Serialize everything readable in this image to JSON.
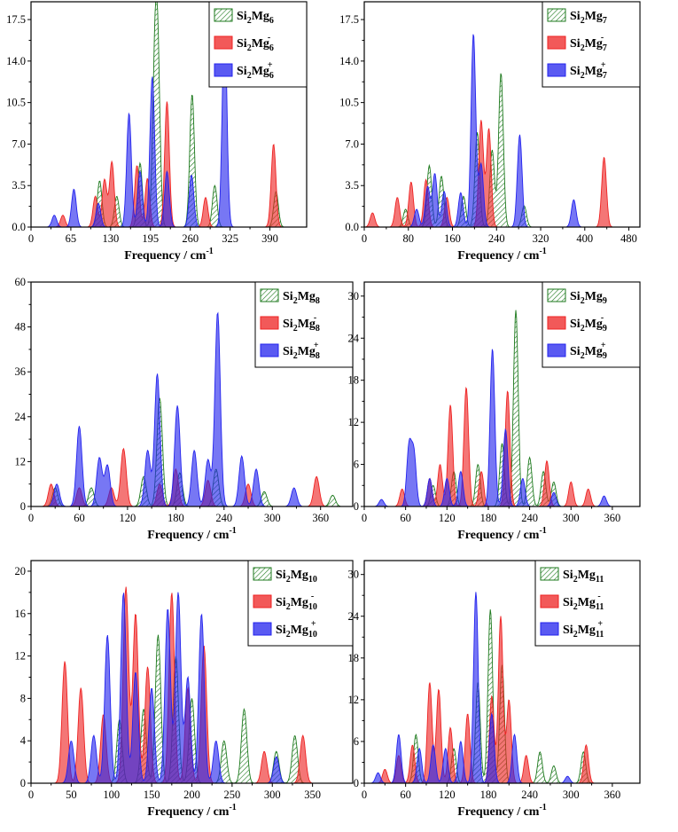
{
  "figure_title": "",
  "colors": {
    "neutral": "#1e7a1e",
    "anion": "#ee2222",
    "cation": "#2323ee"
  },
  "chart_data": [
    {
      "type": "area",
      "id": "si2mg6",
      "xlabel": "Frequency / cm",
      "xlabel_sup": "-1",
      "xlim": [
        0,
        450
      ],
      "ylim": [
        0,
        19
      ],
      "xticks": [
        0,
        65,
        130,
        195,
        260,
        325,
        390
      ],
      "yticks": [
        0.0,
        3.5,
        7.0,
        10.5,
        14.0,
        17.5
      ],
      "legend": [
        {
          "base": "Si",
          "n1": "2",
          "mg": "Mg",
          "n2": "6",
          "charge": "",
          "style": "hatch"
        },
        {
          "base": "Si",
          "n1": "2",
          "mg": "Mg",
          "n2": "6",
          "charge": "-",
          "style": "anion"
        },
        {
          "base": "Si",
          "n1": "2",
          "mg": "Mg",
          "n2": "6",
          "charge": "+",
          "style": "cation"
        }
      ],
      "series": [
        {
          "name": "Si2Mg6",
          "peaks": [
            [
              112,
              3.9
            ],
            [
              140,
              2.6
            ],
            [
              178,
              5.4
            ],
            [
              202,
              11.8
            ],
            [
              207,
              12.8
            ],
            [
              263,
              11.2
            ],
            [
              300,
              3.5
            ],
            [
              400,
              3.0
            ]
          ]
        },
        {
          "name": "Si2Mg6-",
          "peaks": [
            [
              52,
              1.0
            ],
            [
              105,
              2.6
            ],
            [
              120,
              4.0
            ],
            [
              132,
              5.5
            ],
            [
              173,
              5.2
            ],
            [
              190,
              4.1
            ],
            [
              222,
              10.6
            ],
            [
              285,
              2.5
            ],
            [
              396,
              7.0
            ]
          ]
        },
        {
          "name": "Si2Mg6+",
          "peaks": [
            [
              38,
              1.0
            ],
            [
              70,
              3.2
            ],
            [
              110,
              2.0
            ],
            [
              160,
              9.6
            ],
            [
              178,
              4.7
            ],
            [
              198,
              12.7
            ],
            [
              222,
              4.7
            ],
            [
              262,
              4.4
            ],
            [
              316,
              17.4
            ]
          ]
        }
      ]
    },
    {
      "type": "area",
      "id": "si2mg7",
      "xlabel": "Frequency / cm",
      "xlabel_sup": "-1",
      "xlim": [
        0,
        500
      ],
      "ylim": [
        0,
        19
      ],
      "xticks": [
        0,
        80,
        160,
        240,
        320,
        400,
        480
      ],
      "yticks": [
        0.0,
        3.5,
        7.0,
        10.5,
        14.0,
        17.5
      ],
      "legend": [
        {
          "base": "Si",
          "n1": "2",
          "mg": "Mg",
          "n2": "7",
          "charge": "",
          "style": "hatch"
        },
        {
          "base": "Si",
          "n1": "2",
          "mg": "Mg",
          "n2": "7",
          "charge": "-",
          "style": "anion"
        },
        {
          "base": "Si",
          "n1": "2",
          "mg": "Mg",
          "n2": "7",
          "charge": "+",
          "style": "cation"
        }
      ],
      "series": [
        {
          "name": "Si2Mg7",
          "peaks": [
            [
              75,
              1.5
            ],
            [
              118,
              5.2
            ],
            [
              140,
              4.3
            ],
            [
              180,
              2.6
            ],
            [
              205,
              8.0
            ],
            [
              232,
              6.5
            ],
            [
              248,
              13.0
            ],
            [
              290,
              1.8
            ]
          ]
        },
        {
          "name": "Si2Mg7-",
          "peaks": [
            [
              15,
              1.2
            ],
            [
              60,
              2.5
            ],
            [
              85,
              3.8
            ],
            [
              112,
              4.0
            ],
            [
              150,
              2.5
            ],
            [
              212,
              9.0
            ],
            [
              226,
              8.3
            ],
            [
              435,
              5.9
            ]
          ]
        },
        {
          "name": "Si2Mg7+",
          "peaks": [
            [
              95,
              1.5
            ],
            [
              115,
              3.4
            ],
            [
              128,
              4.5
            ],
            [
              145,
              3.0
            ],
            [
              175,
              2.9
            ],
            [
              198,
              16.3
            ],
            [
              212,
              5.3
            ],
            [
              282,
              7.8
            ],
            [
              380,
              2.3
            ]
          ]
        }
      ]
    },
    {
      "type": "area",
      "id": "si2mg8",
      "xlabel": "Frequency / cm",
      "xlabel_sup": "-1",
      "xlim": [
        0,
        400
      ],
      "ylim": [
        0,
        60
      ],
      "xticks": [
        0,
        60,
        120,
        180,
        240,
        300,
        360
      ],
      "yticks": [
        0,
        12,
        24,
        36,
        48,
        60
      ],
      "legend": [
        {
          "base": "Si",
          "n1": "2",
          "mg": "Mg",
          "n2": "8",
          "charge": "",
          "style": "hatch"
        },
        {
          "base": "Si",
          "n1": "2",
          "mg": "Mg",
          "n2": "8",
          "charge": "-",
          "style": "anion"
        },
        {
          "base": "Si",
          "n1": "2",
          "mg": "Mg",
          "n2": "8",
          "charge": "+",
          "style": "cation"
        }
      ],
      "series": [
        {
          "name": "Si2Mg8",
          "peaks": [
            [
              30,
              5.0
            ],
            [
              75,
              5.0
            ],
            [
              140,
              8.0
            ],
            [
              160,
              29.0
            ],
            [
              185,
              9.0
            ],
            [
              230,
              10.0
            ],
            [
              290,
              4.0
            ],
            [
              375,
              3.0
            ]
          ]
        },
        {
          "name": "Si2Mg8-",
          "peaks": [
            [
              25,
              6.0
            ],
            [
              60,
              5.0
            ],
            [
              100,
              5.0
            ],
            [
              115,
              15.5
            ],
            [
              160,
              6.0
            ],
            [
              180,
              10.0
            ],
            [
              220,
              7.0
            ],
            [
              270,
              6.0
            ],
            [
              355,
              8.0
            ]
          ]
        },
        {
          "name": "Si2Mg8+",
          "peaks": [
            [
              32,
              6.0
            ],
            [
              60,
              21.5
            ],
            [
              85,
              13.0
            ],
            [
              95,
              11.0
            ],
            [
              145,
              15.0
            ],
            [
              157,
              35.5
            ],
            [
              182,
              27.0
            ],
            [
              203,
              15.0
            ],
            [
              220,
              12.5
            ],
            [
              232,
              52.0
            ],
            [
              262,
              13.5
            ],
            [
              280,
              10.0
            ],
            [
              327,
              5.0
            ]
          ]
        }
      ]
    },
    {
      "type": "area",
      "id": "si2mg9",
      "xlabel": "Frequency / cm",
      "xlabel_sup": "-1",
      "xlim": [
        0,
        400
      ],
      "ylim": [
        0,
        32
      ],
      "xticks": [
        0,
        60,
        120,
        180,
        240,
        300,
        360
      ],
      "yticks": [
        0,
        6,
        12,
        18,
        24,
        30
      ],
      "legend": [
        {
          "base": "Si",
          "n1": "2",
          "mg": "Mg",
          "n2": "9",
          "charge": "",
          "style": "hatch"
        },
        {
          "base": "Si",
          "n1": "2",
          "mg": "Mg",
          "n2": "9",
          "charge": "-",
          "style": "anion"
        },
        {
          "base": "Si",
          "n1": "2",
          "mg": "Mg",
          "n2": "9",
          "charge": "+",
          "style": "cation"
        }
      ],
      "series": [
        {
          "name": "Si2Mg9",
          "peaks": [
            [
              100,
              3.0
            ],
            [
              130,
              5.0
            ],
            [
              165,
              6.0
            ],
            [
              200,
              9.0
            ],
            [
              220,
              28.0
            ],
            [
              240,
              7.0
            ],
            [
              260,
              5.0
            ],
            [
              275,
              3.5
            ]
          ]
        },
        {
          "name": "Si2Mg9-",
          "peaks": [
            [
              55,
              2.5
            ],
            [
              95,
              4.0
            ],
            [
              110,
              6.0
            ],
            [
              125,
              14.5
            ],
            [
              148,
              17.0
            ],
            [
              170,
              5.0
            ],
            [
              208,
              16.5
            ],
            [
              265,
              6.5
            ],
            [
              300,
              3.5
            ],
            [
              325,
              2.5
            ]
          ]
        },
        {
          "name": "Si2Mg9+",
          "peaks": [
            [
              25,
              1.0
            ],
            [
              65,
              8.5
            ],
            [
              72,
              7.5
            ],
            [
              95,
              4.0
            ],
            [
              120,
              4.0
            ],
            [
              140,
              5.0
            ],
            [
              186,
              22.5
            ],
            [
              205,
              11.0
            ],
            [
              230,
              4.0
            ],
            [
              275,
              2.0
            ],
            [
              348,
              1.5
            ]
          ]
        }
      ]
    },
    {
      "type": "area",
      "id": "si2mg10",
      "xlabel": "Frequency / cm",
      "xlabel_sup": "-1",
      "xlim": [
        0,
        400
      ],
      "ylim": [
        0,
        21
      ],
      "xticks": [
        0,
        50,
        100,
        150,
        200,
        250,
        300,
        350
      ],
      "yticks": [
        0,
        4,
        8,
        12,
        16,
        20
      ],
      "legend": [
        {
          "base": "Si",
          "n1": "2",
          "mg": "Mg",
          "n2": "10",
          "charge": "",
          "style": "hatch"
        },
        {
          "base": "Si",
          "n1": "2",
          "mg": "Mg",
          "n2": "10",
          "charge": "-",
          "style": "anion"
        },
        {
          "base": "Si",
          "n1": "2",
          "mg": "Mg",
          "n2": "10",
          "charge": "+",
          "style": "cation"
        }
      ],
      "series": [
        {
          "name": "Si2Mg10",
          "peaks": [
            [
              110,
              6.0
            ],
            [
              140,
              7.0
            ],
            [
              158,
              14.0
            ],
            [
              180,
              12.0
            ],
            [
              200,
              8.0
            ],
            [
              240,
              4.0
            ],
            [
              265,
              7.0
            ],
            [
              305,
              3.0
            ],
            [
              328,
              4.5
            ]
          ]
        },
        {
          "name": "Si2Mg10-",
          "peaks": [
            [
              42,
              11.5
            ],
            [
              62,
              9.0
            ],
            [
              90,
              6.5
            ],
            [
              118,
              18.5
            ],
            [
              130,
              16.0
            ],
            [
              145,
              11.0
            ],
            [
              175,
              18.0
            ],
            [
              195,
              9.0
            ],
            [
              215,
              13.0
            ],
            [
              290,
              3.0
            ],
            [
              338,
              4.5
            ]
          ]
        },
        {
          "name": "Si2Mg10+",
          "peaks": [
            [
              50,
              4.0
            ],
            [
              78,
              4.5
            ],
            [
              95,
              14.0
            ],
            [
              115,
              18.0
            ],
            [
              130,
              10.5
            ],
            [
              150,
              9.0
            ],
            [
              170,
              16.5
            ],
            [
              183,
              18.0
            ],
            [
              195,
              10.0
            ],
            [
              212,
              16.0
            ],
            [
              230,
              4.0
            ],
            [
              305,
              2.5
            ]
          ]
        }
      ]
    },
    {
      "type": "area",
      "id": "si2mg11",
      "xlabel": "Frequency / cm",
      "xlabel_sup": "-1",
      "xlim": [
        0,
        400
      ],
      "ylim": [
        0,
        32
      ],
      "xticks": [
        0,
        60,
        120,
        180,
        240,
        300,
        360
      ],
      "yticks": [
        0,
        6,
        12,
        18,
        24,
        30
      ],
      "legend": [
        {
          "base": "Si",
          "n1": "2",
          "mg": "Mg",
          "n2": "11",
          "charge": "",
          "style": "hatch"
        },
        {
          "base": "Si",
          "n1": "2",
          "mg": "Mg",
          "n2": "11",
          "charge": "-",
          "style": "anion"
        },
        {
          "base": "Si",
          "n1": "2",
          "mg": "Mg",
          "n2": "11",
          "charge": "+",
          "style": "cation"
        }
      ],
      "series": [
        {
          "name": "Si2Mg11",
          "peaks": [
            [
              75,
              7.0
            ],
            [
              130,
              5.0
            ],
            [
              165,
              14.5
            ],
            [
              183,
              25.0
            ],
            [
              200,
              17.0
            ],
            [
              255,
              4.5
            ],
            [
              275,
              2.5
            ],
            [
              318,
              4.5
            ]
          ]
        },
        {
          "name": "Si2Mg11-",
          "peaks": [
            [
              30,
              2.0
            ],
            [
              50,
              4.0
            ],
            [
              70,
              5.5
            ],
            [
              95,
              14.5
            ],
            [
              108,
              13.5
            ],
            [
              125,
              8.0
            ],
            [
              150,
              10.0
            ],
            [
              185,
              12.5
            ],
            [
              198,
              24.0
            ],
            [
              210,
              12.0
            ],
            [
              235,
              4.0
            ],
            [
              322,
              5.5
            ]
          ]
        },
        {
          "name": "Si2Mg11+",
          "peaks": [
            [
              20,
              1.5
            ],
            [
              50,
              7.0
            ],
            [
              80,
              5.0
            ],
            [
              100,
              5.5
            ],
            [
              118,
              5.0
            ],
            [
              140,
              6.0
            ],
            [
              162,
              27.5
            ],
            [
              185,
              10.0
            ],
            [
              218,
              7.0
            ],
            [
              295,
              1.0
            ]
          ]
        }
      ]
    }
  ]
}
